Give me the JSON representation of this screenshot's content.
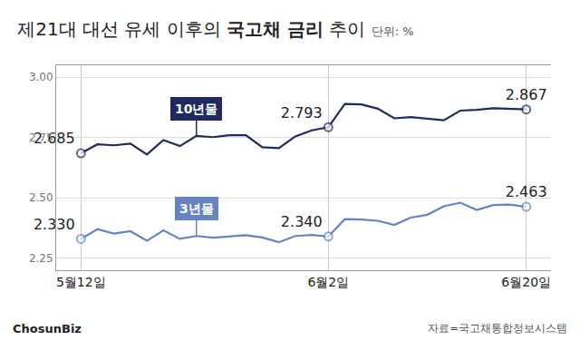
{
  "chart_data": {
    "type": "line",
    "title": "제21대 대선 유세 이후의 국고채 금리 추이",
    "title_emphasis": "국고채 금리",
    "subtitle": "단위: %",
    "source": "자료=국고채통합정보시스템",
    "credit": "ChosunBiz",
    "categories": [
      "5월12일",
      null,
      null,
      null,
      null,
      null,
      null,
      null,
      null,
      null,
      null,
      null,
      null,
      null,
      null,
      "6월2일",
      null,
      null,
      null,
      null,
      null,
      null,
      null,
      null,
      null,
      null,
      null,
      "6월20일"
    ],
    "series": [
      {
        "name": "10년물",
        "color": "#1f2a5e",
        "values": [
          2.685,
          2.722,
          2.718,
          2.725,
          2.68,
          2.74,
          2.715,
          2.757,
          2.752,
          2.76,
          2.76,
          2.71,
          2.706,
          2.755,
          2.78,
          2.793,
          2.89,
          2.888,
          2.87,
          2.83,
          2.835,
          2.828,
          2.822,
          2.862,
          2.865,
          2.872,
          2.87,
          2.867
        ],
        "value_labels": [
          "2.685",
          null,
          null,
          null,
          null,
          null,
          null,
          null,
          null,
          null,
          null,
          null,
          null,
          null,
          null,
          "2.793",
          null,
          null,
          null,
          null,
          null,
          null,
          null,
          null,
          null,
          null,
          null,
          "2.867"
        ]
      },
      {
        "name": "3년물",
        "color": "#6484c4",
        "values": [
          2.33,
          2.37,
          2.352,
          2.362,
          2.322,
          2.365,
          2.33,
          2.342,
          2.335,
          2.34,
          2.345,
          2.336,
          2.316,
          2.342,
          2.346,
          2.34,
          2.412,
          2.41,
          2.405,
          2.388,
          2.418,
          2.43,
          2.465,
          2.48,
          2.45,
          2.47,
          2.472,
          2.463
        ],
        "value_labels": [
          "2.330",
          null,
          null,
          null,
          null,
          null,
          null,
          null,
          null,
          null,
          null,
          null,
          null,
          null,
          null,
          "2.340",
          null,
          null,
          null,
          null,
          null,
          null,
          null,
          null,
          null,
          null,
          null,
          "2.463"
        ]
      }
    ],
    "ylim": [
      2.2,
      3.05
    ],
    "yticks": [
      2.25,
      {
        "value": 2.5,
        "label": "2.50"
      },
      2.75,
      {
        "value": 3.0,
        "label": "3.00"
      }
    ],
    "grid": true,
    "data_labels": true,
    "marker": "circle"
  }
}
